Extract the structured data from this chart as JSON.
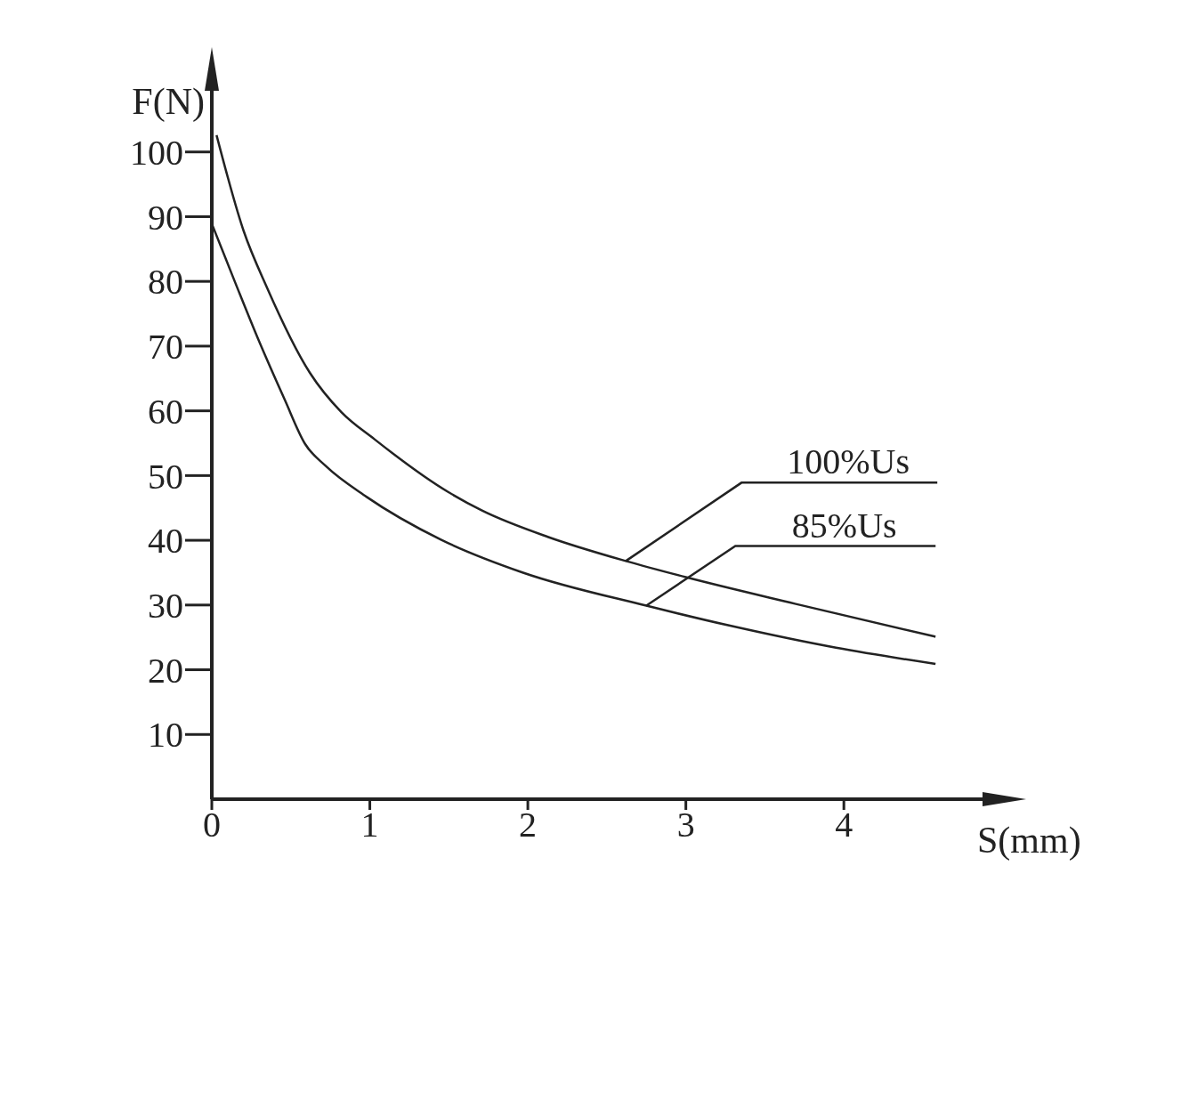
{
  "chart_data": {
    "type": "line",
    "xlabel": "S(mm)",
    "ylabel": "F(N)",
    "xlim": [
      0,
      4.9
    ],
    "xticks": [
      0,
      1,
      2,
      3,
      4
    ],
    "ylim": [
      0,
      110
    ],
    "yticks": [
      10,
      20,
      30,
      40,
      50,
      60,
      70,
      80,
      90,
      100
    ],
    "grid": false,
    "legend": false,
    "marker": "none",
    "line_style": "solid",
    "series": [
      {
        "name": "100%Us",
        "color": "#222222",
        "x": [
          0.03,
          0.2,
          0.35,
          0.62,
          0.82,
          1.03,
          1.5,
          1.71,
          2.13,
          2.62,
          3.0,
          3.69,
          4.58
        ],
        "values": [
          102.6,
          87.9,
          79.0,
          65.9,
          59.8,
          55.6,
          47.4,
          44.6,
          40.5,
          36.8,
          34.3,
          30.2,
          25.1
        ]
      },
      {
        "name": "85%Us",
        "color": "#222222",
        "x": [
          0,
          0.15,
          0.3,
          0.46,
          0.59,
          0.72,
          0.98,
          1.45,
          1.97,
          2.75,
          3.28,
          3.95,
          4.58
        ],
        "values": [
          88.9,
          79.7,
          70.7,
          61.8,
          54.9,
          51.5,
          46.7,
          40.1,
          35.0,
          29.9,
          26.8,
          23.4,
          20.9
        ]
      }
    ]
  }
}
